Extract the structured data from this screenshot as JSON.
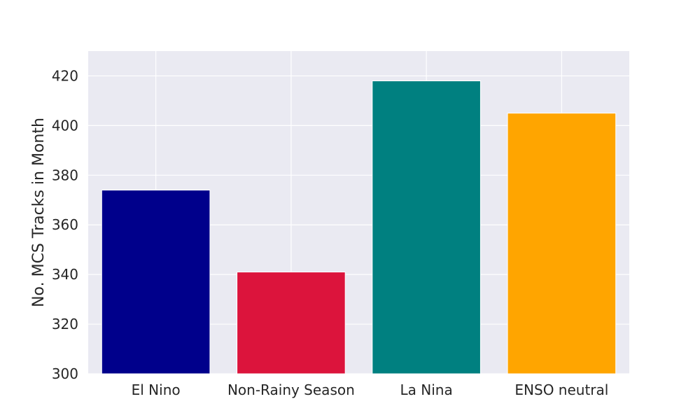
{
  "chart_data": {
    "type": "bar",
    "title": "",
    "xlabel": "",
    "ylabel": "No. MCS Tracks in Month",
    "categories": [
      "El Nino",
      "Non-Rainy Season",
      "La Nina",
      "ENSO neutral"
    ],
    "values": [
      374,
      341,
      418,
      405
    ],
    "colors": [
      "#00008b",
      "#dc143c",
      "#008080",
      "#ffa500"
    ],
    "ylim": [
      300,
      430
    ],
    "yticks": [
      300,
      320,
      340,
      360,
      380,
      400,
      420
    ],
    "ytick_labels": [
      "300",
      "320",
      "340",
      "360",
      "380",
      "400",
      "420"
    ],
    "grid": true,
    "background_color": "#eaeaf2",
    "grid_color": "#ffffff"
  }
}
